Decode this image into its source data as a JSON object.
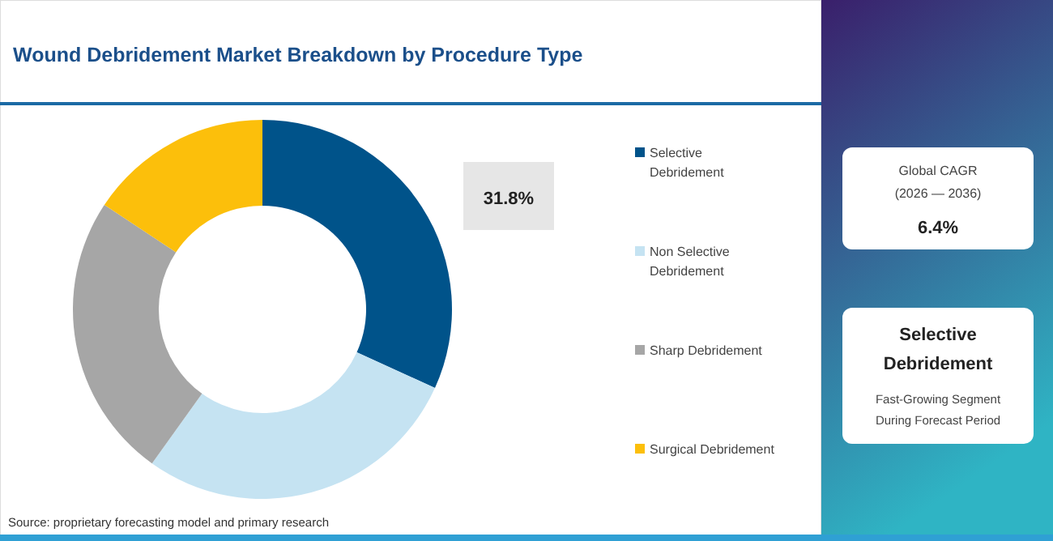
{
  "chart_data": {
    "type": "donut",
    "title": "Wound Debridement Market Breakdown by Procedure Type",
    "categories": [
      "Selective Debridement",
      "Non Selective Debridement",
      "Sharp Debridement",
      "Surgical Debridement"
    ],
    "values": [
      31.8,
      28.1,
      24.4,
      15.7
    ],
    "colors": [
      "#00538a",
      "#c5e3f2",
      "#a6a6a6",
      "#fcbf0b"
    ],
    "value_labels": [
      "31.8%",
      null,
      null,
      null
    ],
    "legend": "right",
    "annotations": [
      "Source: proprietary forecasting model and primary research",
      "Global CAGR",
      "(2026 — 2036)",
      "6.4%",
      "Selective Debridement",
      "Fast-Growing Segment During Forecast Period"
    ]
  }
}
